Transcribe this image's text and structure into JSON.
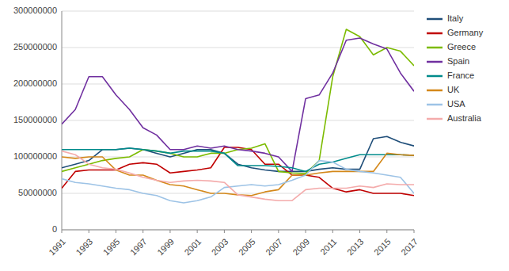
{
  "chart_data": {
    "type": "line",
    "x": [
      1991,
      1992,
      1993,
      1994,
      1995,
      1996,
      1997,
      1998,
      1999,
      2000,
      2001,
      2002,
      2003,
      2004,
      2005,
      2006,
      2007,
      2008,
      2009,
      2010,
      2011,
      2012,
      2013,
      2014,
      2015,
      2016,
      2017
    ],
    "series": [
      {
        "name": "Italy",
        "color": "#1F4E79",
        "values": [
          85000000,
          90000000,
          95000000,
          110000000,
          110000000,
          112000000,
          110000000,
          105000000,
          100000000,
          105000000,
          110000000,
          110000000,
          105000000,
          90000000,
          85000000,
          82000000,
          80000000,
          80000000,
          80000000,
          83000000,
          85000000,
          83000000,
          83000000,
          125000000,
          128000000,
          120000000,
          115000000
        ]
      },
      {
        "name": "Germany",
        "color": "#C00000",
        "values": [
          57000000,
          80000000,
          82000000,
          82000000,
          82000000,
          90000000,
          92000000,
          90000000,
          78000000,
          80000000,
          82000000,
          85000000,
          113000000,
          113000000,
          110000000,
          90000000,
          90000000,
          75000000,
          75000000,
          72000000,
          57000000,
          52000000,
          55000000,
          50000000,
          50000000,
          50000000,
          47000000
        ]
      },
      {
        "name": "Greece",
        "color": "#7CBB00",
        "values": [
          80000000,
          85000000,
          90000000,
          95000000,
          98000000,
          100000000,
          110000000,
          108000000,
          105000000,
          100000000,
          100000000,
          105000000,
          105000000,
          110000000,
          112000000,
          118000000,
          80000000,
          78000000,
          77000000,
          95000000,
          210000000,
          275000000,
          265000000,
          240000000,
          250000000,
          245000000,
          225000000
        ]
      },
      {
        "name": "Spain",
        "color": "#7030A0",
        "values": [
          145000000,
          165000000,
          210000000,
          210000000,
          185000000,
          165000000,
          140000000,
          130000000,
          110000000,
          110000000,
          115000000,
          112000000,
          115000000,
          110000000,
          108000000,
          105000000,
          100000000,
          80000000,
          180000000,
          185000000,
          215000000,
          260000000,
          263000000,
          255000000,
          248000000,
          215000000,
          190000000
        ]
      },
      {
        "name": "France",
        "color": "#008B8B",
        "values": [
          110000000,
          110000000,
          110000000,
          110000000,
          110000000,
          112000000,
          110000000,
          108000000,
          105000000,
          108000000,
          108000000,
          108000000,
          105000000,
          88000000,
          88000000,
          88000000,
          87000000,
          85000000,
          80000000,
          90000000,
          93000000,
          98000000,
          103000000,
          103000000,
          103000000,
          103000000,
          102000000
        ]
      },
      {
        "name": "UK",
        "color": "#D4881A",
        "values": [
          100000000,
          98000000,
          100000000,
          100000000,
          82000000,
          75000000,
          75000000,
          68000000,
          62000000,
          60000000,
          55000000,
          50000000,
          50000000,
          48000000,
          47000000,
          52000000,
          55000000,
          75000000,
          75000000,
          78000000,
          80000000,
          80000000,
          80000000,
          80000000,
          105000000,
          103000000,
          102000000
        ]
      },
      {
        "name": "USA",
        "color": "#9DC3E6",
        "values": [
          70000000,
          65000000,
          63000000,
          60000000,
          57000000,
          55000000,
          50000000,
          47000000,
          40000000,
          37000000,
          40000000,
          45000000,
          58000000,
          60000000,
          62000000,
          60000000,
          62000000,
          68000000,
          75000000,
          95000000,
          93000000,
          83000000,
          80000000,
          78000000,
          75000000,
          72000000,
          50000000
        ]
      },
      {
        "name": "Australia",
        "color": "#F4ABAB",
        "values": [
          108000000,
          103000000,
          90000000,
          85000000,
          83000000,
          78000000,
          72000000,
          68000000,
          65000000,
          67000000,
          68000000,
          67000000,
          65000000,
          48000000,
          45000000,
          42000000,
          40000000,
          40000000,
          55000000,
          57000000,
          57000000,
          57000000,
          60000000,
          58000000,
          63000000,
          62000000,
          62000000
        ]
      }
    ],
    "xlim": [
      1991,
      2017
    ],
    "xticks": [
      1991,
      1993,
      1995,
      1997,
      1999,
      2001,
      2003,
      2005,
      2007,
      2009,
      2011,
      2013,
      2015,
      2017
    ],
    "ylim": [
      0,
      300000000
    ],
    "yticks": [
      0,
      50000000,
      100000000,
      150000000,
      200000000,
      250000000,
      300000000
    ],
    "grid": true,
    "legend": "right"
  }
}
